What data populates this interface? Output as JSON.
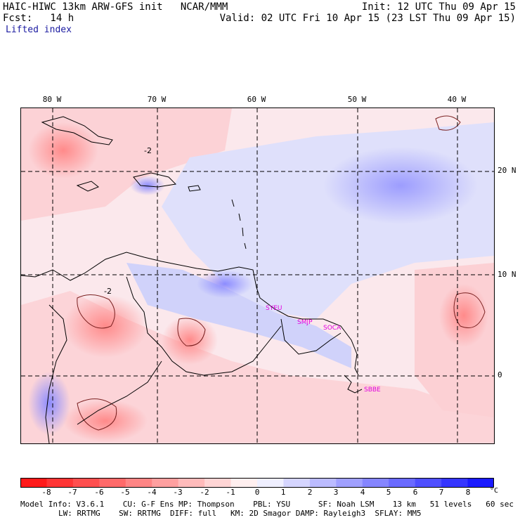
{
  "header": {
    "title_left": "HAIC-HIWC 13km ARW-GFS init   NCAR/MMM",
    "forecast": "Fcst:   14 h",
    "variable": "Lifted index",
    "init": "Init: 12 UTC Thu 09 Apr 15",
    "valid": "Valid: 02 UTC Fri 10 Apr 15 (23 LST Thu 09 Apr 15)"
  },
  "map": {
    "lon_labels": [
      "80 W",
      "70 W",
      "60 W",
      "50 W",
      "40 W"
    ],
    "lat_labels": [
      "20 N",
      "10 N",
      "0"
    ],
    "contour_labels": [
      "-2",
      "-2"
    ],
    "stations": [
      "SYEU",
      "SMJP",
      "SOCA",
      "SBBE"
    ]
  },
  "colorbar": {
    "labels": [
      "-8",
      "-7",
      "-6",
      "-5",
      "-4",
      "-3",
      "-2",
      "-1",
      "0",
      "1",
      "2",
      "3",
      "4",
      "5",
      "6",
      "7",
      "8"
    ],
    "unit": "°C",
    "colors": [
      "#ff1a1a",
      "#ff3535",
      "#ff4f4f",
      "#ff6a6a",
      "#ff8585",
      "#ffa0a0",
      "#ffbbbb",
      "#ffd5d5",
      "#ffefef",
      "#efefff",
      "#d5d5ff",
      "#bbbbff",
      "#a0a0ff",
      "#8585ff",
      "#6a6aff",
      "#4f4fff",
      "#3535ff",
      "#1a1aff"
    ]
  },
  "footer": {
    "line1": "Model Info: V3.6.1    CU: G-F Ens MP: Thompson    PBL: YSU      SF: Noah LSM    13 km   51 levels   60 sec",
    "line2": "LW: RRTMG    SW: RRTMG  DIFF: full   KM: 2D Smagor DAMP: Rayleigh3  SFLAY: MM5"
  }
}
